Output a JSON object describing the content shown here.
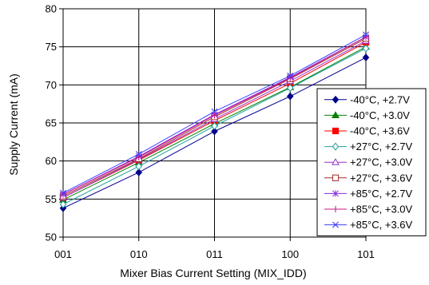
{
  "chart_data": {
    "type": "line",
    "xlabel": "Mixer Bias Current Setting (MIX_IDD)",
    "ylabel": "Supply Current (mA)",
    "categories": [
      "001",
      "010",
      "011",
      "100",
      "101"
    ],
    "ylim": [
      50,
      80
    ],
    "yticks": [
      50,
      55,
      60,
      65,
      70,
      75,
      80
    ],
    "grid": "on",
    "legend_position": "right",
    "series": [
      {
        "name": "-40°C, +2.7V",
        "color": "#00008B",
        "marker": "diamond-filled",
        "values": [
          53.8,
          58.5,
          63.9,
          68.5,
          73.6
        ]
      },
      {
        "name": "-40°C, +3.0V",
        "color": "#008000",
        "marker": "triangle-filled",
        "values": [
          54.9,
          59.8,
          64.9,
          69.7,
          75.0
        ]
      },
      {
        "name": "-40°C, +3.6V",
        "color": "#FF0000",
        "marker": "square-filled",
        "values": [
          55.2,
          60.1,
          65.3,
          70.2,
          75.6
        ]
      },
      {
        "name": "+27°C, +2.7V",
        "color": "#20A0A0",
        "marker": "diamond-open",
        "values": [
          54.3,
          59.3,
          64.6,
          69.6,
          74.8
        ]
      },
      {
        "name": "+27°C, +3.0V",
        "color": "#9932CC",
        "marker": "triangle-open",
        "values": [
          55.2,
          60.2,
          65.5,
          70.5,
          75.8
        ]
      },
      {
        "name": "+27°C, +3.6V",
        "color": "#A52A2A",
        "marker": "square-open",
        "values": [
          55.4,
          60.3,
          65.8,
          70.8,
          76.1
        ]
      },
      {
        "name": "+85°C, +2.7V",
        "color": "#8A2BE2",
        "marker": "asterisk",
        "values": [
          55.6,
          60.6,
          66.1,
          71.0,
          76.3
        ]
      },
      {
        "name": "+85°C, +3.0V",
        "color": "#C71585",
        "marker": "plus",
        "values": [
          55.6,
          60.5,
          66.0,
          70.9,
          76.3
        ]
      },
      {
        "name": "+85°C, +3.6V",
        "color": "#4040FF",
        "marker": "x",
        "values": [
          55.8,
          60.9,
          66.5,
          71.2,
          76.6
        ]
      }
    ]
  }
}
